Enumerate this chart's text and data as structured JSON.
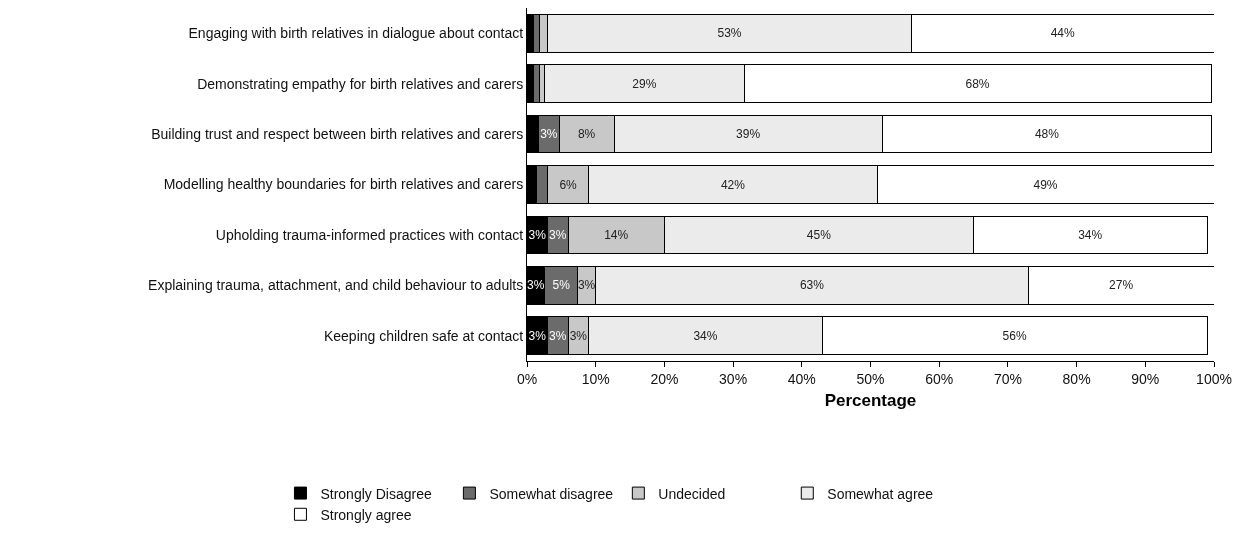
{
  "chart_data": {
    "type": "bar",
    "orientation": "horizontal",
    "stacked": true,
    "xlabel": "Percentage",
    "categories": [
      "Engaging with birth relatives in dialogue about contact",
      "Demonstrating empathy for birth relatives and carers",
      "Building trust and respect between birth relatives and carers",
      "Modelling healthy boundaries for birth relatives and carers",
      "Upholding trauma-informed practices with contact",
      "Explaining trauma, attachment, and child behaviour to adults",
      "Keeping children safe at contact"
    ],
    "series": [
      {
        "name": "Strongly Disagree",
        "color": "#000000",
        "values": [
          0.9,
          0.9,
          1.7,
          1.4,
          3,
          2.6,
          3
        ],
        "value_labels": [
          null,
          null,
          null,
          null,
          "3%",
          "3%",
          "3%"
        ]
      },
      {
        "name": "Somewhat disagree",
        "color": "#6b6b6b",
        "values": [
          0.9,
          0.9,
          3,
          1.6,
          3,
          4.8,
          3
        ],
        "value_labels": [
          null,
          null,
          "3%",
          null,
          "3%",
          "5%",
          "3%"
        ]
      },
      {
        "name": "Undecided",
        "color": "#c8c8c8",
        "values": [
          1.2,
          0.8,
          8,
          6,
          14,
          2.6,
          3
        ],
        "value_labels": [
          null,
          null,
          "8%",
          "6%",
          "14%",
          "3%",
          "3%"
        ]
      },
      {
        "name": "Somewhat agree",
        "color": "#ebebeb",
        "values": [
          53,
          29,
          39,
          42,
          45,
          63,
          34
        ],
        "value_labels": [
          "53%",
          "29%",
          "39%",
          "42%",
          "45%",
          "63%",
          "34%"
        ]
      },
      {
        "name": "Strongly agree",
        "color": "#ffffff",
        "values": [
          44,
          68,
          48,
          49,
          34,
          27,
          56
        ],
        "value_labels": [
          "44%",
          "68%",
          "48%",
          "49%",
          "34%",
          "27%",
          "56%"
        ]
      }
    ],
    "xlim": [
      0,
      100
    ],
    "xticks": [
      {
        "value": 0,
        "label": "0%"
      },
      {
        "value": 10,
        "label": "10%"
      },
      {
        "value": 20,
        "label": "20%"
      },
      {
        "value": 30,
        "label": "30%"
      },
      {
        "value": 40,
        "label": "40%"
      },
      {
        "value": 50,
        "label": "50%"
      },
      {
        "value": 60,
        "label": "60%"
      },
      {
        "value": 70,
        "label": "70%"
      },
      {
        "value": 80,
        "label": "80%"
      },
      {
        "value": 90,
        "label": "90%"
      },
      {
        "value": 100,
        "label": "100%"
      }
    ],
    "grid": false,
    "legend": "bottom"
  }
}
